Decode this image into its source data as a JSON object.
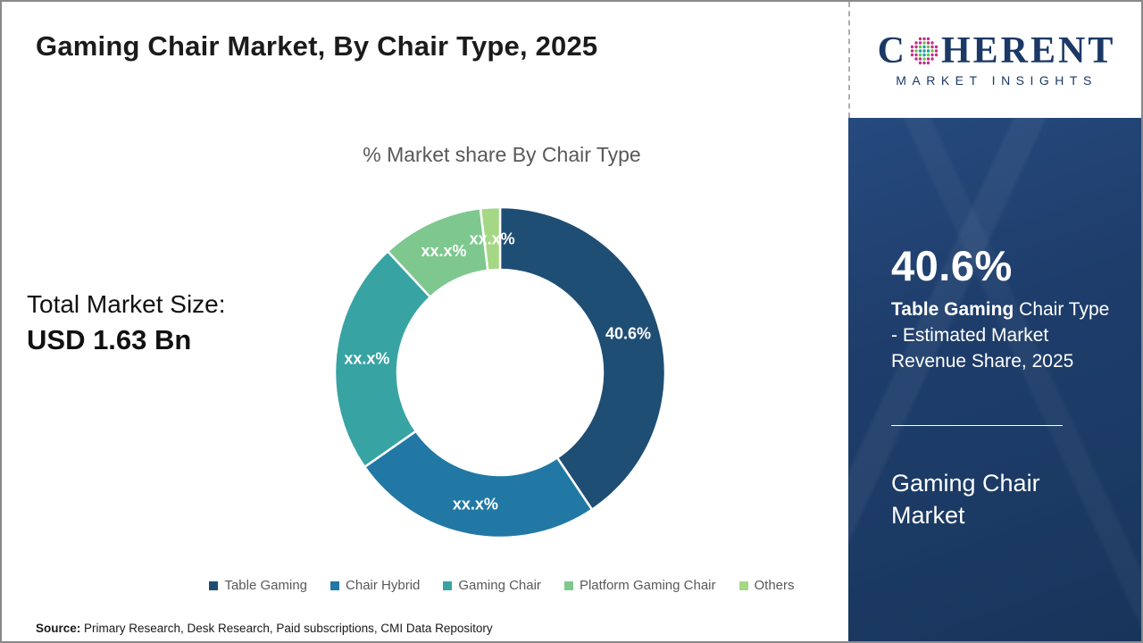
{
  "header": {
    "title": "Gaming Chair Market, By Chair Type, 2025"
  },
  "logo": {
    "text_c": "C",
    "text_rest": "HERENT",
    "subtitle": "MARKET INSIGHTS",
    "navy": "#1b3966",
    "dot_colors": {
      "inner": "#1c9fa0",
      "mid": "#6abf4b",
      "outer": "#c0308c"
    }
  },
  "chart": {
    "title": "% Market share By Chair Type"
  },
  "total_market": {
    "label": "Total Market Size:",
    "value": "USD 1.63 Bn"
  },
  "chart_data": {
    "type": "donut",
    "title": "% Market share By Chair Type",
    "categories": [
      "Table Gaming",
      "Chair Hybrid",
      "Gaming Chair",
      "Platform Gaming Chair",
      "Others"
    ],
    "values": [
      40.6,
      24.7,
      22.8,
      10.0,
      1.9
    ],
    "display_labels": [
      "40.6%",
      "xx.x%",
      "xx.x%",
      "xx.x%",
      "xx.x%"
    ],
    "colors": [
      "#1f4e74",
      "#2278a5",
      "#38a3a3",
      "#7ec88f",
      "#a5d884"
    ],
    "legend_position": "bottom",
    "start_angle_deg": 0,
    "direction": "clockwise",
    "inner_radius_px": 115,
    "outer_radius_px": 185
  },
  "sidebar": {
    "stat_value": "40.6%",
    "desc_bold": "Table Gaming",
    "desc_rest": " Chair Type - Estimated Market Revenue Share, 2025",
    "market_name": "Gaming Chair Market",
    "bg_color": "#1b3a64"
  },
  "source": {
    "label": "Source:",
    "text": " Primary Research, Desk Research, Paid subscriptions, CMI Data Repository"
  }
}
